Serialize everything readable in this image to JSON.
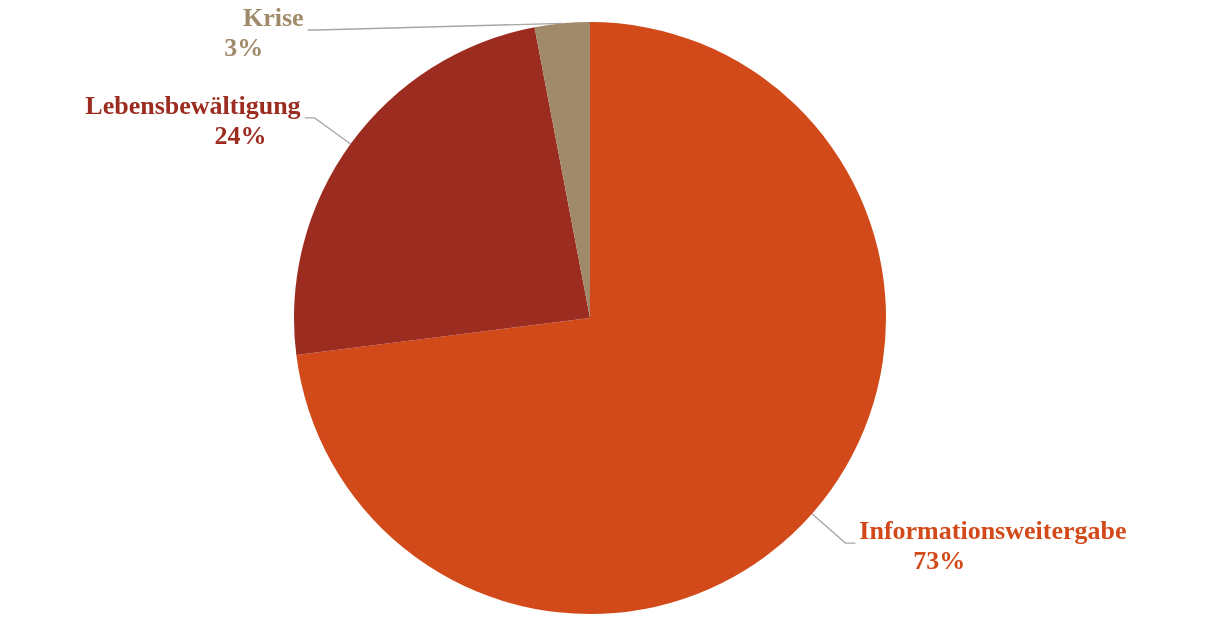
{
  "chart_data": {
    "type": "pie",
    "categories": [
      "Informationsweitergabe",
      "Lebensbewältigung",
      "Krise"
    ],
    "values": [
      73,
      24,
      3
    ],
    "colors": [
      "#d24a19",
      "#9b2c1f",
      "#a08a6a"
    ],
    "value_labels": [
      "73%",
      "24%",
      "3%"
    ]
  }
}
